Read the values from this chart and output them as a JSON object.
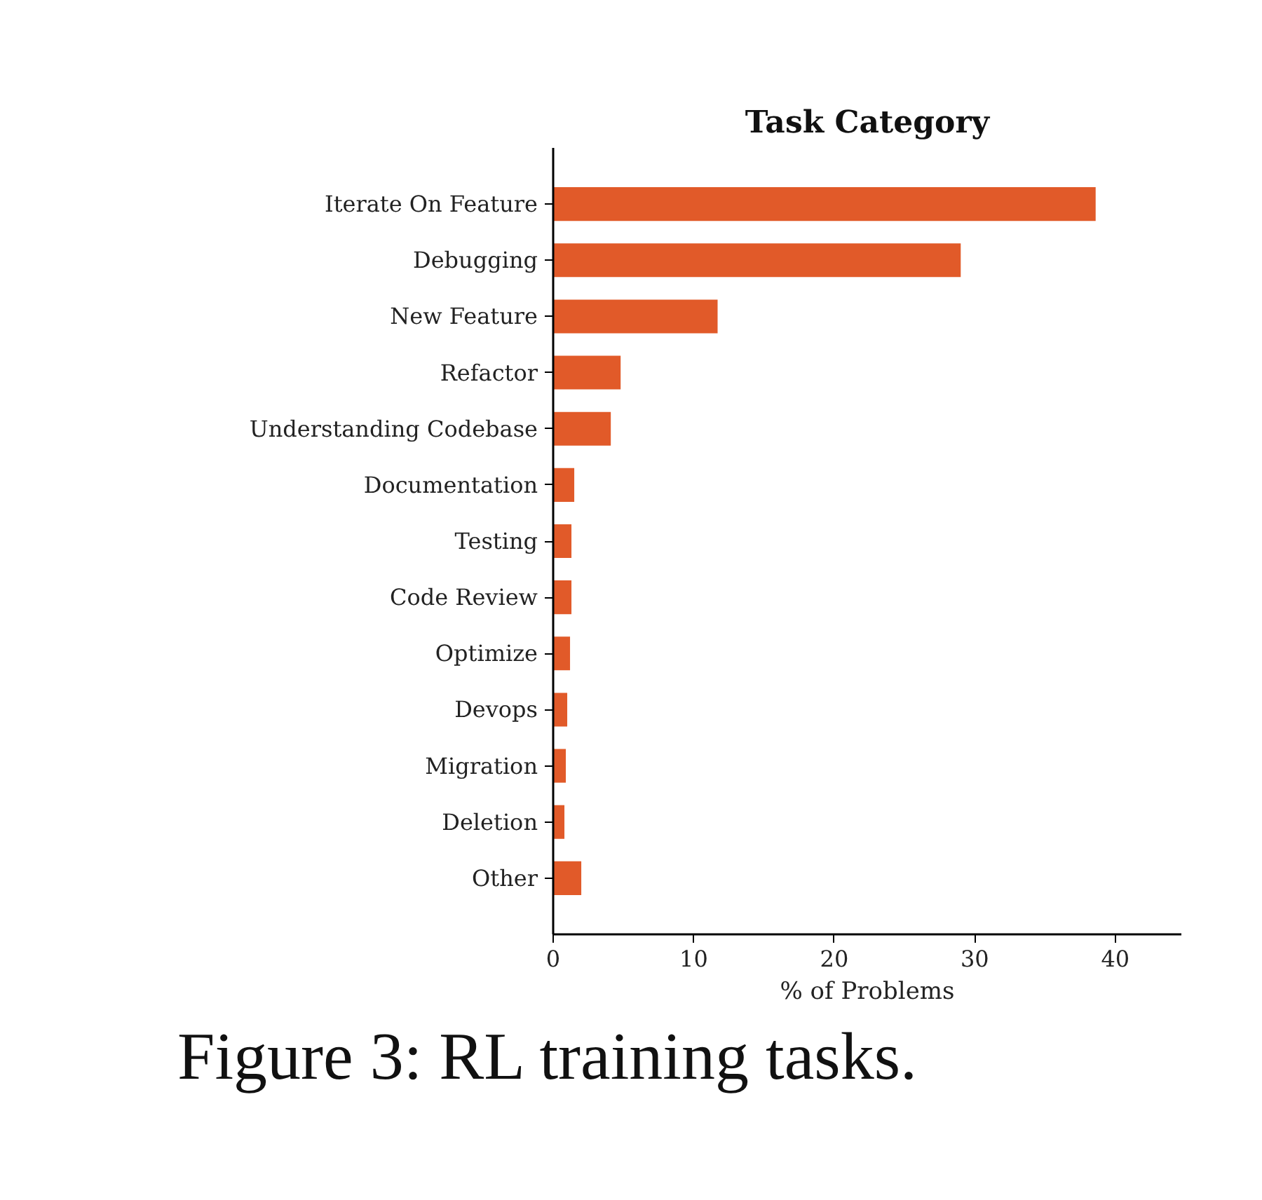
{
  "chart_data": {
    "type": "bar",
    "orientation": "horizontal",
    "title": "Task Category",
    "xlabel": "% of Problems",
    "categories": [
      "Iterate On Feature",
      "Debugging",
      "New Feature",
      "Refactor",
      "Understanding Codebase",
      "Documentation",
      "Testing",
      "Code Review",
      "Optimize",
      "Devops",
      "Migration",
      "Deletion",
      "Other"
    ],
    "values": [
      38.6,
      29.0,
      11.7,
      4.8,
      4.1,
      1.5,
      1.3,
      1.3,
      1.2,
      1.0,
      0.9,
      0.8,
      2.0
    ],
    "color": "#e15a29",
    "xlim": [
      0,
      44.7
    ],
    "xticks": [
      0,
      10,
      20,
      30,
      40
    ],
    "grid": false,
    "annotations": [
      "Figure 3: RL training tasks."
    ]
  }
}
